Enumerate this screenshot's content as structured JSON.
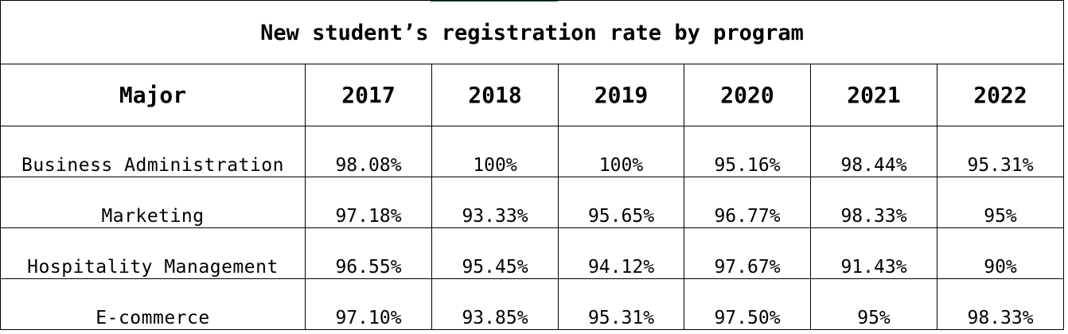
{
  "chart_data": {
    "type": "table",
    "title": "New student’s registration rate by program",
    "columns": [
      "Major",
      "2017",
      "2018",
      "2019",
      "2020",
      "2021",
      "2022"
    ],
    "rows": [
      {
        "major": "Business Administration",
        "values": [
          "98.08%",
          "100%",
          "100%",
          "95.16%",
          "98.44%",
          "95.31%"
        ]
      },
      {
        "major": "Marketing",
        "values": [
          "97.18%",
          "93.33%",
          "95.65%",
          "96.77%",
          "98.33%",
          "95%"
        ]
      },
      {
        "major": "Hospitality Management",
        "values": [
          "96.55%",
          "95.45%",
          "94.12%",
          "97.67%",
          "91.43%",
          "90%"
        ]
      },
      {
        "major": "E-commerce",
        "values": [
          "97.10%",
          "93.85%",
          "95.31%",
          "97.50%",
          "95%",
          "98.33%"
        ]
      }
    ]
  },
  "colors": {
    "border": "#000000",
    "selection_accent": "#217346",
    "background": "#ffffff"
  }
}
